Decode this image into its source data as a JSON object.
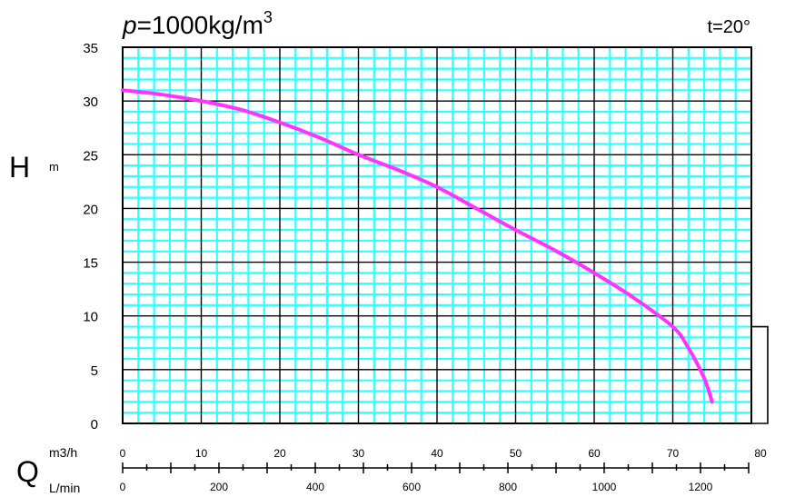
{
  "header": {
    "density_symbol": "p",
    "density_value": "=1000kg/m",
    "density_exp": "3",
    "temperature": "t=20°"
  },
  "axes": {
    "y_symbol": "H",
    "y_unit": "m",
    "x_symbol": "Q",
    "x_unit_top": "m3/h",
    "x_unit_bottom": "L/min"
  },
  "colors": {
    "minor_grid": "#33ffff",
    "major_grid": "#000000",
    "curve": "#ff33ff"
  },
  "chart_data": {
    "type": "line",
    "title": "",
    "xlabel": "Q",
    "ylabel": "H",
    "xlim": [
      0,
      80
    ],
    "ylim": [
      0,
      35
    ],
    "grid": true,
    "y_ticks": [
      0,
      5,
      10,
      15,
      20,
      25,
      30,
      35
    ],
    "x_ticks_m3h": [
      0,
      10,
      20,
      30,
      40,
      50,
      60,
      70,
      80
    ],
    "x_ticks_lmin": [
      0,
      200,
      400,
      600,
      800,
      1000,
      1200
    ],
    "lmin_minor_step": 50,
    "series": [
      {
        "x": [
          0,
          5,
          10,
          15,
          20,
          25,
          30,
          35,
          40,
          45,
          50,
          55,
          60,
          65,
          70,
          72,
          74,
          75
        ],
        "y": [
          31,
          30.6,
          30,
          29.2,
          28,
          26.6,
          25,
          23.6,
          22,
          20,
          18,
          16.1,
          14,
          11.7,
          9,
          7,
          4.2,
          2
        ]
      }
    ]
  }
}
